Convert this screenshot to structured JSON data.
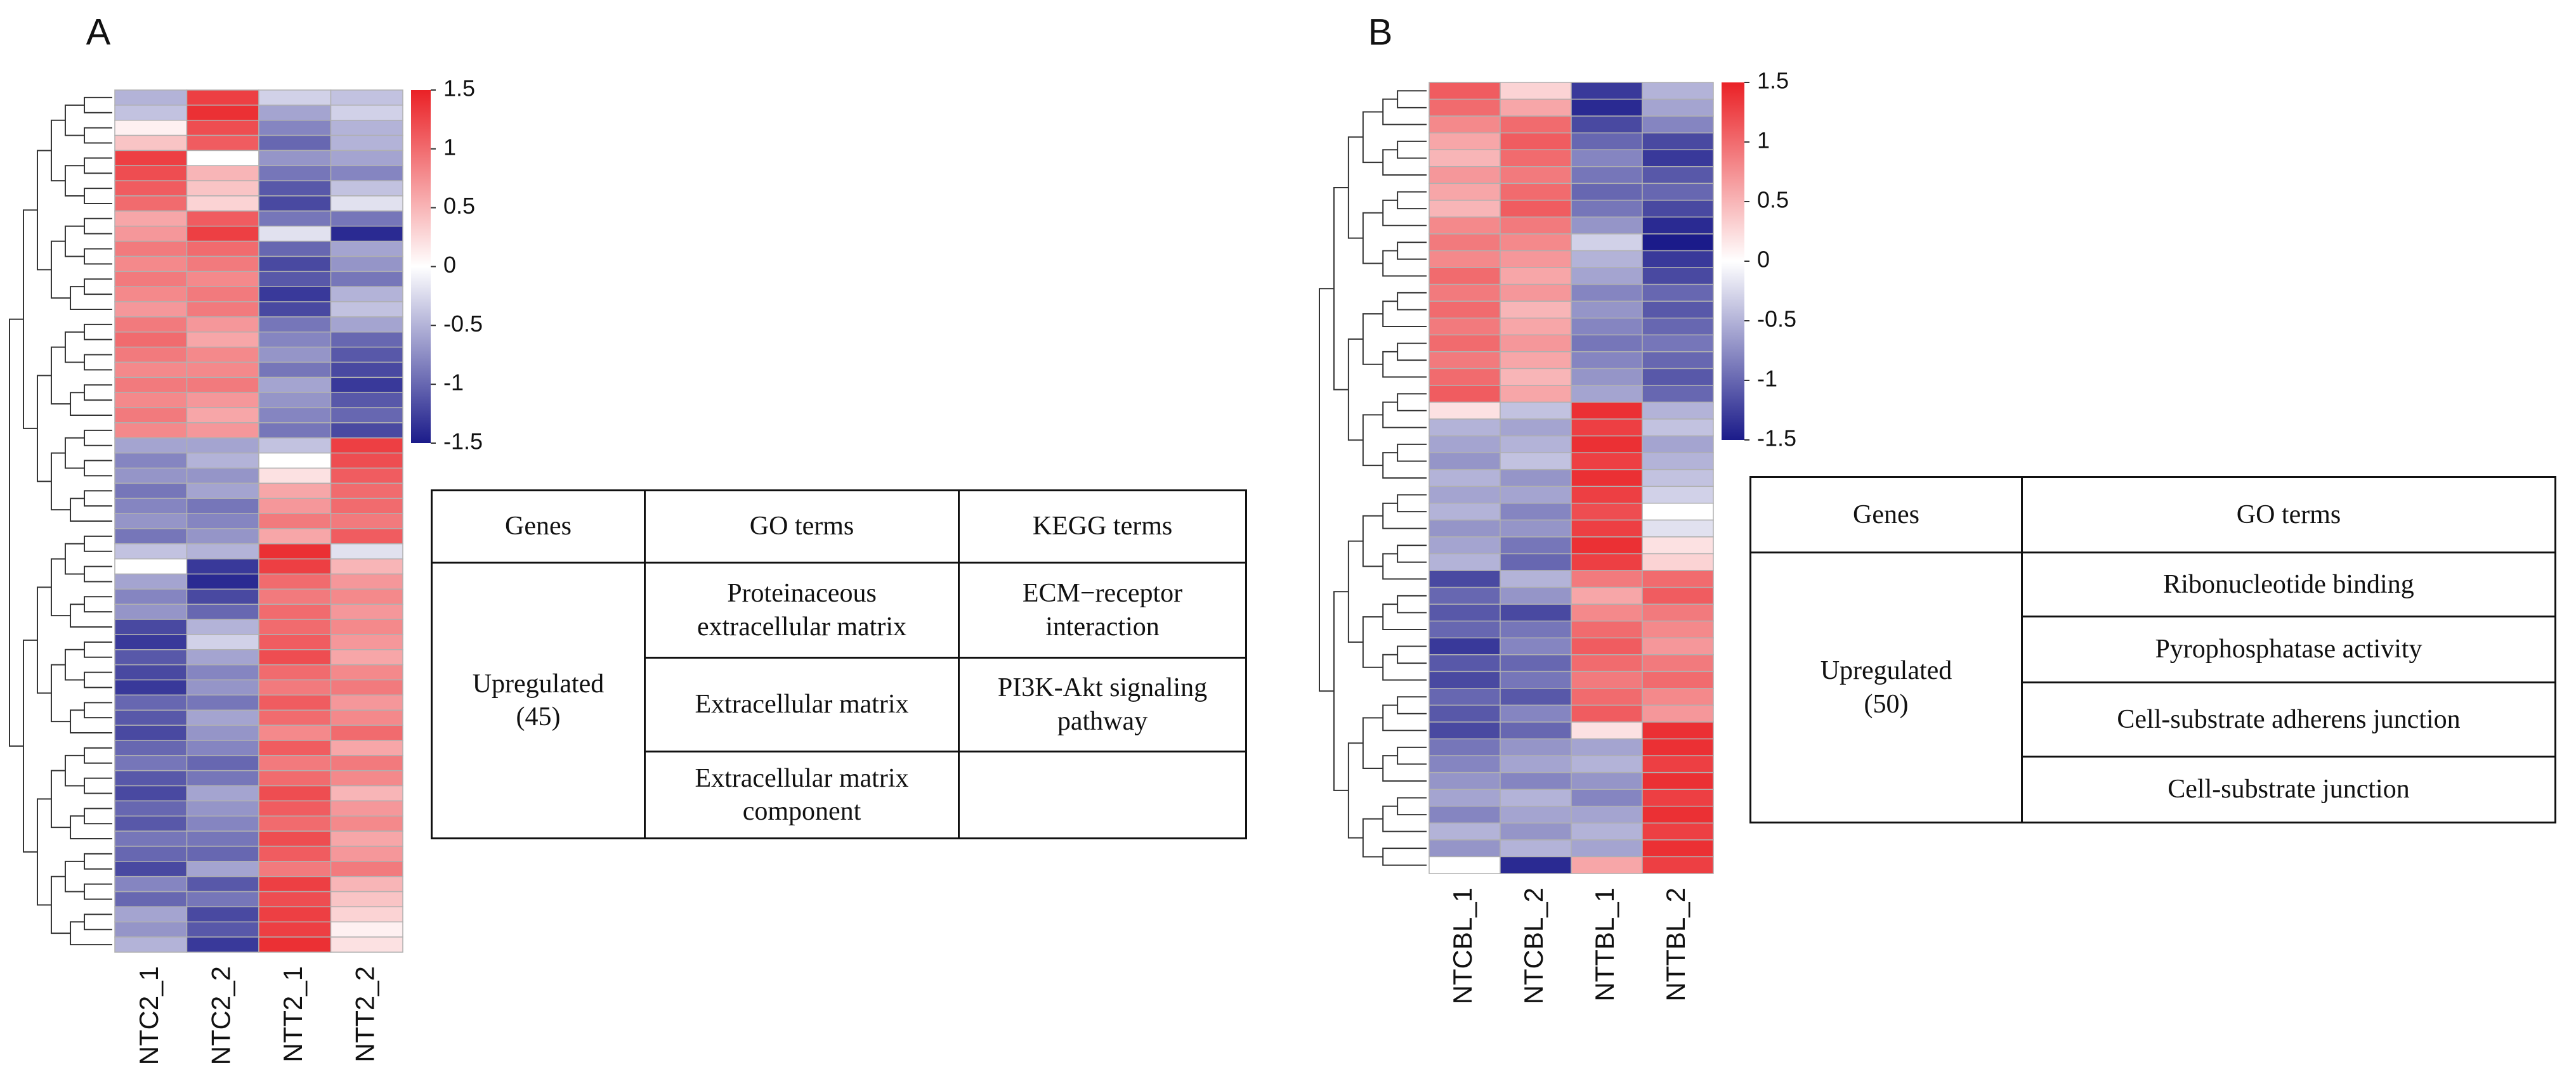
{
  "chart_data": [
    {
      "type": "heatmap",
      "label": "A",
      "columns": [
        "NTC2_1",
        "NTC2_2",
        "NTT2_1",
        "NTT2_2"
      ],
      "colors": [
        "#1b1b8a",
        "#ffffff",
        "#ea2126"
      ],
      "zlim": [
        -1.5,
        1.5
      ],
      "zticks": [
        1.5,
        1,
        0.5,
        0,
        -0.5,
        -1,
        -1.5
      ],
      "values": [
        [
          -0.5,
          1.3,
          -0.3,
          -0.4
        ],
        [
          -0.4,
          1.4,
          -0.6,
          -0.3
        ],
        [
          0.1,
          1.2,
          -0.8,
          -0.5
        ],
        [
          0.4,
          1.1,
          -1.0,
          -0.5
        ],
        [
          1.3,
          0.0,
          -0.7,
          -0.6
        ],
        [
          1.2,
          0.5,
          -0.9,
          -0.8
        ],
        [
          1.1,
          0.4,
          -1.1,
          -0.4
        ],
        [
          1.0,
          0.3,
          -1.2,
          -0.2
        ],
        [
          0.6,
          1.1,
          -0.9,
          -0.9
        ],
        [
          0.7,
          1.3,
          -0.2,
          -1.4
        ],
        [
          0.9,
          1.0,
          -1.0,
          -0.6
        ],
        [
          0.8,
          0.9,
          -1.2,
          -0.7
        ],
        [
          0.9,
          0.8,
          -1.1,
          -0.9
        ],
        [
          0.8,
          0.9,
          -1.3,
          -0.5
        ],
        [
          0.7,
          0.9,
          -1.2,
          -0.4
        ],
        [
          0.9,
          0.7,
          -0.9,
          -0.6
        ],
        [
          1.0,
          0.6,
          -0.8,
          -1.0
        ],
        [
          0.9,
          0.8,
          -0.7,
          -1.1
        ],
        [
          0.8,
          0.8,
          -0.9,
          -1.2
        ],
        [
          0.9,
          0.9,
          -0.6,
          -1.3
        ],
        [
          0.8,
          0.7,
          -0.7,
          -1.1
        ],
        [
          0.9,
          0.6,
          -0.8,
          -1.0
        ],
        [
          0.8,
          0.7,
          -0.9,
          -1.2
        ],
        [
          -0.6,
          -0.6,
          -0.4,
          1.3
        ],
        [
          -0.8,
          -0.5,
          0.0,
          1.2
        ],
        [
          -0.7,
          -0.7,
          0.2,
          1.1
        ],
        [
          -0.9,
          -0.6,
          0.6,
          1.0
        ],
        [
          -0.8,
          -0.9,
          0.7,
          1.0
        ],
        [
          -0.7,
          -0.8,
          0.9,
          0.9
        ],
        [
          -0.9,
          -0.7,
          0.6,
          1.1
        ],
        [
          -0.4,
          -0.5,
          1.4,
          -0.2
        ],
        [
          0.0,
          -1.3,
          1.3,
          0.5
        ],
        [
          -0.6,
          -1.4,
          1.0,
          0.7
        ],
        [
          -0.8,
          -1.2,
          0.9,
          0.8
        ],
        [
          -0.7,
          -1.0,
          1.0,
          0.7
        ],
        [
          -1.2,
          -0.5,
          1.0,
          0.8
        ],
        [
          -1.3,
          -0.3,
          1.1,
          0.7
        ],
        [
          -1.1,
          -0.6,
          1.2,
          0.6
        ],
        [
          -1.2,
          -0.8,
          1.0,
          0.8
        ],
        [
          -1.3,
          -0.7,
          0.9,
          0.9
        ],
        [
          -1.0,
          -0.9,
          1.1,
          0.7
        ],
        [
          -1.1,
          -0.6,
          1.0,
          0.8
        ],
        [
          -1.2,
          -0.7,
          0.8,
          1.0
        ],
        [
          -1.0,
          -0.8,
          1.1,
          0.6
        ],
        [
          -0.9,
          -1.0,
          0.9,
          0.9
        ],
        [
          -1.1,
          -0.9,
          1.0,
          0.8
        ],
        [
          -1.2,
          -0.6,
          1.2,
          0.5
        ],
        [
          -1.0,
          -0.7,
          1.1,
          0.7
        ],
        [
          -1.1,
          -0.8,
          1.0,
          0.8
        ],
        [
          -0.9,
          -0.9,
          1.2,
          0.6
        ],
        [
          -1.0,
          -1.0,
          1.1,
          0.7
        ],
        [
          -1.2,
          -0.6,
          0.9,
          0.9
        ],
        [
          -0.8,
          -1.1,
          1.3,
          0.5
        ],
        [
          -1.0,
          -0.9,
          1.2,
          0.4
        ],
        [
          -0.6,
          -1.2,
          1.3,
          0.3
        ],
        [
          -0.7,
          -1.1,
          1.3,
          0.1
        ],
        [
          -0.5,
          -1.3,
          1.4,
          0.2
        ]
      ]
    },
    {
      "type": "heatmap",
      "label": "B",
      "columns": [
        "NTCBL_1",
        "NTCBL_2",
        "NTTBL_1",
        "NTTBL_2"
      ],
      "colors": [
        "#1b1b8a",
        "#ffffff",
        "#ea2126"
      ],
      "zlim": [
        -1.5,
        1.5
      ],
      "zticks": [
        1.5,
        1,
        0.5,
        0,
        -0.5,
        -1,
        -1.5
      ],
      "values": [
        [
          1.1,
          0.3,
          -1.3,
          -0.5
        ],
        [
          1.0,
          0.6,
          -1.4,
          -0.6
        ],
        [
          0.8,
          1.0,
          -1.2,
          -0.8
        ],
        [
          0.6,
          1.1,
          -1.0,
          -1.2
        ],
        [
          0.5,
          1.0,
          -0.8,
          -1.3
        ],
        [
          0.7,
          0.9,
          -0.9,
          -1.1
        ],
        [
          0.6,
          1.0,
          -1.0,
          -1.0
        ],
        [
          0.5,
          1.1,
          -0.9,
          -1.2
        ],
        [
          0.8,
          0.9,
          -0.7,
          -1.4
        ],
        [
          0.9,
          0.8,
          -0.3,
          -1.5
        ],
        [
          0.8,
          0.7,
          -0.5,
          -1.3
        ],
        [
          1.0,
          0.6,
          -0.6,
          -1.2
        ],
        [
          0.9,
          0.7,
          -0.8,
          -1.0
        ],
        [
          1.0,
          0.5,
          -0.7,
          -1.1
        ],
        [
          0.9,
          0.6,
          -0.8,
          -1.0
        ],
        [
          1.0,
          0.7,
          -0.9,
          -0.9
        ],
        [
          0.9,
          0.6,
          -0.8,
          -1.0
        ],
        [
          1.0,
          0.5,
          -0.7,
          -1.1
        ],
        [
          1.1,
          0.6,
          -0.6,
          -1.0
        ],
        [
          0.2,
          -0.4,
          1.4,
          -0.5
        ],
        [
          -0.5,
          -0.6,
          1.3,
          -0.4
        ],
        [
          -0.6,
          -0.5,
          1.4,
          -0.6
        ],
        [
          -0.7,
          -0.4,
          1.3,
          -0.5
        ],
        [
          -0.5,
          -0.7,
          1.4,
          -0.4
        ],
        [
          -0.6,
          -0.6,
          1.3,
          -0.3
        ],
        [
          -0.5,
          -0.8,
          1.2,
          0.0
        ],
        [
          -0.7,
          -0.7,
          1.3,
          -0.2
        ],
        [
          -0.6,
          -0.9,
          1.4,
          0.2
        ],
        [
          -0.5,
          -1.0,
          1.3,
          0.3
        ],
        [
          -1.2,
          -0.5,
          0.9,
          1.0
        ],
        [
          -1.0,
          -0.7,
          0.6,
          1.1
        ],
        [
          -1.1,
          -1.2,
          0.8,
          0.9
        ],
        [
          -1.0,
          -0.9,
          1.0,
          0.8
        ],
        [
          -1.3,
          -0.8,
          1.1,
          0.7
        ],
        [
          -1.1,
          -1.0,
          1.0,
          0.9
        ],
        [
          -1.2,
          -0.9,
          0.9,
          1.0
        ],
        [
          -1.0,
          -1.1,
          1.0,
          0.8
        ],
        [
          -1.1,
          -0.8,
          1.1,
          0.7
        ],
        [
          -1.2,
          -1.0,
          0.2,
          1.4
        ],
        [
          -0.9,
          -0.7,
          -0.6,
          1.4
        ],
        [
          -0.8,
          -0.6,
          -0.5,
          1.3
        ],
        [
          -0.7,
          -0.8,
          -0.7,
          1.4
        ],
        [
          -0.6,
          -0.5,
          -0.8,
          1.3
        ],
        [
          -0.8,
          -0.6,
          -0.6,
          1.4
        ],
        [
          -0.5,
          -0.7,
          -0.5,
          1.3
        ],
        [
          -0.7,
          -0.5,
          -0.6,
          1.4
        ],
        [
          0.0,
          -1.4,
          0.6,
          1.3
        ]
      ]
    }
  ],
  "table_a": {
    "headers": [
      "Genes",
      "GO terms",
      "KEGG terms"
    ],
    "group": "Upregulated (45)",
    "go_terms": [
      "Proteinaceous extracellular matrix",
      "Extracellular matrix",
      "Extracellular matrix component"
    ],
    "kegg_terms": [
      "ECM−receptor interaction",
      "PI3K-Akt signaling pathway"
    ]
  },
  "table_b": {
    "headers": [
      "Genes",
      "GO terms"
    ],
    "group": "Upregulated (50)",
    "go_terms": [
      "Ribonucleotide binding",
      "Pyrophosphatase activity",
      "Cell-substrate adherens junction",
      "Cell-substrate junction"
    ]
  }
}
